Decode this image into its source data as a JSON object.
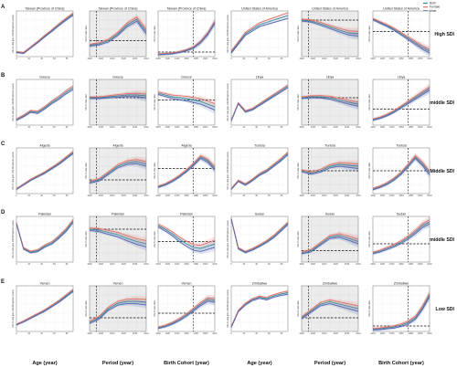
{
  "legend": {
    "items": [
      {
        "label": "Both",
        "color": "#3b8a9a"
      },
      {
        "label": "Female",
        "color": "#e1736a"
      },
      {
        "label": "Male",
        "color": "#5366b0"
      }
    ]
  },
  "rows": [
    {
      "letter": "A",
      "sdi": "High SDI",
      "countries": [
        "Taiwan (Province of China)",
        "United States of America"
      ]
    },
    {
      "letter": "B",
      "sdi": "High-middle SDI",
      "countries": [
        "Greece",
        "Libya"
      ]
    },
    {
      "letter": "C",
      "sdi": "Middle SDI",
      "countries": [
        "Algeria",
        "Tunisia"
      ]
    },
    {
      "letter": "D",
      "sdi": "Low-middle SDI",
      "countries": [
        "Pakistan",
        "Sudan"
      ]
    },
    {
      "letter": "E",
      "sdi": "Low SDI",
      "countries": [
        "Yemen",
        "Zimbabwe"
      ]
    }
  ],
  "axis_titles": {
    "age": "Age (year)",
    "period": "Period (year)",
    "cohort": "Birth Cohort (year)"
  },
  "y_labels": {
    "age": "DALYs rate (per 100,000 person-years)",
    "ratio": "DALYs rate ratio"
  },
  "ticks": {
    "age": [
      "0",
      "10",
      "20",
      "30",
      "40",
      "50",
      "60",
      "70",
      "80",
      "90"
    ],
    "period": [
      "1990",
      "2000",
      "2010",
      "2020",
      "2030",
      "2040"
    ],
    "cohort": [
      "1900",
      "1920",
      "1940",
      "1960",
      "1980",
      "2000",
      "2020"
    ]
  },
  "chart_data": {
    "type": "line",
    "layout": "5 rows x 6 panels; each row = 2 countries x (age, period, cohort) effects",
    "series": [
      "Both",
      "Female",
      "Male"
    ],
    "panels": [
      {
        "row": "A",
        "country": "Taiwan (Province of China)",
        "effect": "age",
        "trend": [
          0.1,
          0.08,
          0.2,
          0.32,
          0.45,
          0.57,
          0.7,
          0.82,
          0.93
        ],
        "spread": 0.05
      },
      {
        "row": "A",
        "country": "Taiwan (Province of China)",
        "effect": "period",
        "trend": [
          0.25,
          0.28,
          0.35,
          0.5,
          0.7,
          0.82,
          0.55
        ],
        "spread": 0.1,
        "ref_y": 0.35
      },
      {
        "row": "A",
        "country": "Taiwan (Province of China)",
        "effect": "cohort",
        "trend": [
          0.05,
          0.06,
          0.07,
          0.1,
          0.14,
          0.2,
          0.32,
          0.5,
          0.75
        ],
        "spread": 0.04,
        "ref_y": 0.1
      },
      {
        "row": "A",
        "country": "United States of America",
        "effect": "age",
        "trend": [
          0.1,
          0.3,
          0.5,
          0.6,
          0.7,
          0.75,
          0.8,
          0.85,
          0.9
        ],
        "spread": 0.12
      },
      {
        "row": "A",
        "country": "United States of America",
        "effect": "period",
        "trend": [
          0.8,
          0.78,
          0.72,
          0.65,
          0.58,
          0.52,
          0.5
        ],
        "spread": 0.1,
        "ref_y": 0.8
      },
      {
        "row": "A",
        "country": "United States of America",
        "effect": "cohort",
        "trend": [
          0.82,
          0.75,
          0.68,
          0.6,
          0.5,
          0.4,
          0.3,
          0.2,
          0.12
        ],
        "spread": 0.08,
        "ref_y": 0.55
      },
      {
        "row": "B",
        "country": "Greece",
        "effect": "age",
        "trend": [
          0.12,
          0.2,
          0.3,
          0.28,
          0.38,
          0.5,
          0.6,
          0.72,
          0.82
        ],
        "spread": 0.08
      },
      {
        "row": "B",
        "country": "Greece",
        "effect": "period",
        "trend": [
          0.6,
          0.6,
          0.62,
          0.64,
          0.66,
          0.66,
          0.64
        ],
        "spread": 0.08,
        "ref_y": 0.6
      },
      {
        "row": "B",
        "country": "Greece",
        "effect": "cohort",
        "trend": [
          0.7,
          0.66,
          0.62,
          0.6,
          0.58,
          0.55,
          0.52,
          0.46,
          0.4
        ],
        "spread": 0.14,
        "ref_y": 0.55
      },
      {
        "row": "B",
        "country": "Libya",
        "effect": "age",
        "trend": [
          0.1,
          0.48,
          0.3,
          0.35,
          0.45,
          0.55,
          0.65,
          0.75,
          0.85
        ],
        "spread": 0.06
      },
      {
        "row": "B",
        "country": "Libya",
        "effect": "period",
        "trend": [
          0.6,
          0.62,
          0.62,
          0.6,
          0.55,
          0.5,
          0.46
        ],
        "spread": 0.09,
        "ref_y": 0.6
      },
      {
        "row": "B",
        "country": "Libya",
        "effect": "cohort",
        "trend": [
          0.12,
          0.16,
          0.22,
          0.3,
          0.4,
          0.5,
          0.6,
          0.7,
          0.8
        ],
        "spread": 0.07,
        "ref_y": 0.35
      },
      {
        "row": "C",
        "country": "Algeria",
        "effect": "age",
        "trend": [
          0.1,
          0.2,
          0.3,
          0.38,
          0.46,
          0.56,
          0.66,
          0.78,
          0.9
        ],
        "spread": 0.05
      },
      {
        "row": "C",
        "country": "Algeria",
        "effect": "period",
        "trend": [
          0.25,
          0.3,
          0.45,
          0.6,
          0.68,
          0.7,
          0.65
        ],
        "spread": 0.1,
        "ref_y": 0.3
      },
      {
        "row": "C",
        "country": "Algeria",
        "effect": "cohort",
        "trend": [
          0.15,
          0.2,
          0.28,
          0.38,
          0.5,
          0.64,
          0.8,
          0.72,
          0.55
        ],
        "spread": 0.07,
        "ref_y": 0.55
      },
      {
        "row": "C",
        "country": "Tunisia",
        "effect": "age",
        "trend": [
          0.1,
          0.28,
          0.2,
          0.3,
          0.42,
          0.5,
          0.62,
          0.74,
          0.88
        ],
        "spread": 0.06
      },
      {
        "row": "C",
        "country": "Tunisia",
        "effect": "period",
        "trend": [
          0.5,
          0.45,
          0.5,
          0.6,
          0.64,
          0.62,
          0.6
        ],
        "spread": 0.1,
        "ref_y": 0.5
      },
      {
        "row": "C",
        "country": "Tunisia",
        "effect": "cohort",
        "trend": [
          0.1,
          0.15,
          0.22,
          0.32,
          0.45,
          0.62,
          0.8,
          0.65,
          0.45
        ],
        "spread": 0.08,
        "ref_y": 0.5
      },
      {
        "row": "D",
        "country": "Pakistan",
        "effect": "age",
        "trend": [
          0.85,
          0.3,
          0.22,
          0.25,
          0.35,
          0.42,
          0.55,
          0.7,
          0.9
        ],
        "spread": 0.07
      },
      {
        "row": "D",
        "country": "Pakistan",
        "effect": "period",
        "trend": [
          0.72,
          0.7,
          0.65,
          0.6,
          0.52,
          0.45,
          0.4
        ],
        "spread": 0.14,
        "ref_y": 0.72
      },
      {
        "row": "D",
        "country": "Pakistan",
        "effect": "cohort",
        "trend": [
          0.8,
          0.72,
          0.62,
          0.5,
          0.4,
          0.32,
          0.3,
          0.35,
          0.4
        ],
        "spread": 0.16,
        "ref_y": 0.45
      },
      {
        "row": "D",
        "country": "Sudan",
        "effect": "age",
        "trend": [
          0.95,
          0.3,
          0.22,
          0.28,
          0.36,
          0.45,
          0.56,
          0.7,
          0.85
        ],
        "spread": 0.06
      },
      {
        "row": "D",
        "country": "Sudan",
        "effect": "period",
        "trend": [
          0.2,
          0.25,
          0.4,
          0.55,
          0.58,
          0.52,
          0.45
        ],
        "spread": 0.1,
        "ref_y": 0.25
      },
      {
        "row": "D",
        "country": "Sudan",
        "effect": "cohort",
        "trend": [
          0.2,
          0.24,
          0.3,
          0.36,
          0.44,
          0.54,
          0.66,
          0.8,
          0.88
        ],
        "spread": 0.09,
        "ref_y": 0.4
      },
      {
        "row": "E",
        "country": "Yemen",
        "effect": "age",
        "trend": [
          0.15,
          0.22,
          0.3,
          0.38,
          0.46,
          0.56,
          0.66,
          0.78,
          0.9
        ],
        "spread": 0.05
      },
      {
        "row": "E",
        "country": "Yemen",
        "effect": "period",
        "trend": [
          0.2,
          0.3,
          0.5,
          0.62,
          0.66,
          0.66,
          0.64
        ],
        "spread": 0.12,
        "ref_y": 0.3
      },
      {
        "row": "E",
        "country": "Yemen",
        "effect": "cohort",
        "trend": [
          0.08,
          0.12,
          0.18,
          0.26,
          0.36,
          0.48,
          0.6,
          0.7,
          0.68
        ],
        "spread": 0.08,
        "ref_y": 0.4
      },
      {
        "row": "E",
        "country": "Zimbabwe",
        "effect": "age",
        "trend": [
          0.1,
          0.45,
          0.6,
          0.7,
          0.75,
          0.72,
          0.78,
          0.82,
          0.85
        ],
        "spread": 0.07
      },
      {
        "row": "E",
        "country": "Zimbabwe",
        "effect": "period",
        "trend": [
          0.3,
          0.45,
          0.6,
          0.65,
          0.6,
          0.55,
          0.5
        ],
        "spread": 0.12,
        "ref_y": 0.3
      },
      {
        "row": "E",
        "country": "Zimbabwe",
        "effect": "cohort",
        "trend": [
          0.05,
          0.06,
          0.08,
          0.1,
          0.14,
          0.2,
          0.3,
          0.52,
          0.8
        ],
        "spread": 0.08,
        "ref_y": 0.12
      }
    ]
  }
}
